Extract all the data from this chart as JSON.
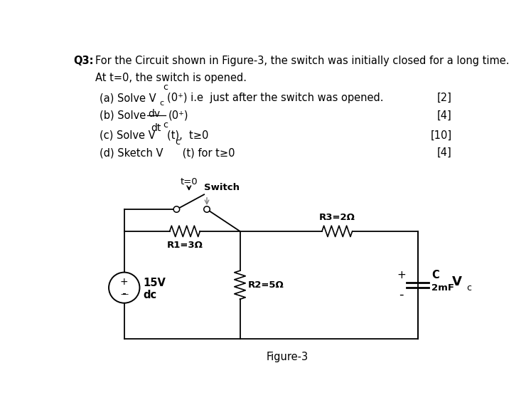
{
  "title_q3": "Q3:",
  "title_text": "For the Circuit shown in Figure-3, the switch was initially closed for a long time.",
  "subtitle": "At t=0, the switch is opened.",
  "part_a": "(a) Solve V",
  "part_a_sub": "c",
  "part_a_rest": "(0⁺) i.e  just after the switch was opened.",
  "part_a_mark": "[2]",
  "part_b_pre": "(b) Solve ",
  "part_b_num": "dv",
  "part_b_numsub": "c",
  "part_b_den": "dt",
  "part_b_rest": "(0⁺)",
  "part_b_mark": "[4]",
  "part_c": "(c) Solve V",
  "part_c_sub": "c",
  "part_c_rest": "(t),  t≥0",
  "part_c_mark": "[10]",
  "part_d": "(d) Sketch V",
  "part_d_sub": "c",
  "part_d_rest": " (t) for t≥0",
  "part_d_mark": "[4]",
  "figure_label": "Figure-3",
  "bg_color": "#ffffff",
  "switch_label": "t=0",
  "switch_text": "Switch",
  "r1_label": "R1=3Ω",
  "r2_label": "R2=5Ω",
  "r3_label": "R3=2Ω",
  "cap_label1": "C",
  "cap_label2": "2mF",
  "vc_label": "V",
  "vc_sub": "c",
  "vs_label1": "15V",
  "vs_label2": "dc",
  "plus_sign": "+",
  "minus_sign": "-"
}
